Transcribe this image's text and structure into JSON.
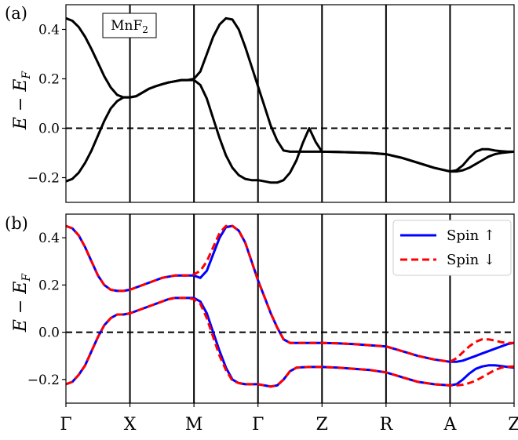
{
  "chart_data": [
    {
      "type": "line",
      "panel_label": "(a)",
      "annotation": "MnF",
      "annotation_sub": "2",
      "ylabel": "E − E",
      "ylabel_sub": "F",
      "ylim": [
        -0.3,
        0.5
      ],
      "yticks": [
        -0.2,
        0.0,
        0.2,
        0.4
      ],
      "ytick_labels": [
        "−0.2",
        "0.0",
        "0.2",
        "0.4"
      ],
      "x_ticks": [
        "Γ",
        "X",
        "M",
        "Γ",
        "Z",
        "R",
        "A",
        "Z"
      ],
      "x_tick_labels_visible": false,
      "fermi_level": 0.0,
      "colors": {
        "band": "#000000",
        "fermi": "#000000"
      },
      "series": [
        {
          "x": [
            0,
            0.1,
            0.2,
            0.3,
            0.4,
            0.5,
            0.6,
            0.7,
            0.8,
            0.9,
            1.0,
            1.1,
            1.2,
            1.3,
            1.4,
            1.5,
            1.6,
            1.7,
            1.8,
            1.9,
            2.0,
            2.1,
            2.2,
            2.3,
            2.4,
            2.5,
            2.6,
            2.7,
            2.8,
            2.9,
            3.0,
            3.1,
            3.2,
            3.3,
            3.4,
            3.5,
            3.6,
            3.7,
            3.8,
            3.9,
            4.0,
            4.25,
            4.5,
            4.75,
            5.0,
            5.25,
            5.5,
            5.75,
            6.0,
            6.1,
            6.2,
            6.3,
            6.4,
            6.5,
            6.6,
            6.7,
            6.8,
            6.9,
            7.0
          ],
          "values": [
            0.445,
            0.435,
            0.41,
            0.37,
            0.32,
            0.265,
            0.21,
            0.165,
            0.135,
            0.125,
            0.125,
            0.13,
            0.145,
            0.16,
            0.17,
            0.178,
            0.185,
            0.19,
            0.195,
            0.195,
            0.195,
            0.175,
            0.12,
            0.04,
            -0.04,
            -0.11,
            -0.16,
            -0.19,
            -0.205,
            -0.21,
            -0.21,
            -0.215,
            -0.22,
            -0.22,
            -0.21,
            -0.18,
            -0.13,
            -0.06,
            0.0,
            -0.055,
            -0.095,
            -0.096,
            -0.098,
            -0.1,
            -0.105,
            -0.12,
            -0.14,
            -0.16,
            -0.175,
            -0.17,
            -0.15,
            -0.12,
            -0.095,
            -0.085,
            -0.085,
            -0.09,
            -0.093,
            -0.095,
            -0.095
          ]
        },
        {
          "x": [
            0,
            0.1,
            0.2,
            0.3,
            0.4,
            0.5,
            0.6,
            0.7,
            0.8,
            0.9,
            1.0,
            1.1,
            1.2,
            1.3,
            1.4,
            1.5,
            1.6,
            1.7,
            1.8,
            1.9,
            2.0,
            2.1,
            2.2,
            2.3,
            2.4,
            2.5,
            2.6,
            2.7,
            2.8,
            2.9,
            3.0,
            3.1,
            3.2,
            3.3,
            3.4,
            3.5,
            3.6,
            3.7,
            3.8,
            3.9,
            4.0,
            4.25,
            4.5,
            4.75,
            5.0,
            5.25,
            5.5,
            5.75,
            6.0,
            6.1,
            6.2,
            6.3,
            6.4,
            6.5,
            6.6,
            6.7,
            6.8,
            6.9,
            7.0
          ],
          "values": [
            -0.215,
            -0.205,
            -0.18,
            -0.14,
            -0.09,
            -0.03,
            0.03,
            0.08,
            0.11,
            0.125,
            0.125,
            0.13,
            0.145,
            0.16,
            0.17,
            0.178,
            0.185,
            0.19,
            0.195,
            0.195,
            0.2,
            0.23,
            0.3,
            0.37,
            0.42,
            0.445,
            0.44,
            0.4,
            0.33,
            0.25,
            0.17,
            0.09,
            0.01,
            -0.05,
            -0.09,
            -0.095,
            -0.095,
            -0.095,
            -0.095,
            -0.095,
            -0.095,
            -0.096,
            -0.098,
            -0.1,
            -0.105,
            -0.12,
            -0.14,
            -0.16,
            -0.175,
            -0.175,
            -0.17,
            -0.16,
            -0.145,
            -0.13,
            -0.115,
            -0.105,
            -0.1,
            -0.097,
            -0.095
          ]
        }
      ]
    },
    {
      "type": "line",
      "panel_label": "(b)",
      "ylabel": "E − E",
      "ylabel_sub": "F",
      "ylim": [
        -0.3,
        0.5
      ],
      "yticks": [
        -0.2,
        0.0,
        0.2,
        0.4
      ],
      "ytick_labels": [
        "−0.2",
        "0.0",
        "0.2",
        "0.4"
      ],
      "x_ticks": [
        "Γ",
        "X",
        "M",
        "Γ",
        "Z",
        "R",
        "A",
        "Z"
      ],
      "fermi_level": 0.0,
      "legend": [
        {
          "label": "Spin ↑",
          "color": "#0000ff",
          "dash": "solid"
        },
        {
          "label": "Spin ↓",
          "color": "#ff0000",
          "dash": "dashed"
        }
      ],
      "legend_placement": "top-right",
      "colors": {
        "up": "#0000ff",
        "down": "#ff0000",
        "fermi": "#000000"
      },
      "series": [
        {
          "name": "Spin ↑",
          "band": 1,
          "x": [
            0,
            0.1,
            0.2,
            0.3,
            0.4,
            0.5,
            0.6,
            0.7,
            0.8,
            0.9,
            1.0,
            1.1,
            1.2,
            1.3,
            1.4,
            1.5,
            1.6,
            1.7,
            1.8,
            1.9,
            2.0,
            2.1,
            2.2,
            2.3,
            2.4,
            2.5,
            2.6,
            2.7,
            2.8,
            2.9,
            3.0,
            3.1,
            3.2,
            3.3,
            3.4,
            3.5,
            3.6,
            3.7,
            3.8,
            3.9,
            4.0,
            4.25,
            4.5,
            4.75,
            5.0,
            5.25,
            5.5,
            5.75,
            6.0,
            6.1,
            6.2,
            6.3,
            6.4,
            6.5,
            6.6,
            6.7,
            6.8,
            6.9,
            7.0
          ],
          "values": [
            0.45,
            0.44,
            0.41,
            0.36,
            0.3,
            0.24,
            0.2,
            0.18,
            0.175,
            0.175,
            0.18,
            0.19,
            0.2,
            0.21,
            0.22,
            0.23,
            0.235,
            0.24,
            0.24,
            0.24,
            0.24,
            0.23,
            0.26,
            0.33,
            0.4,
            0.445,
            0.45,
            0.43,
            0.38,
            0.3,
            0.22,
            0.15,
            0.08,
            0.02,
            -0.03,
            -0.045,
            -0.045,
            -0.045,
            -0.045,
            -0.045,
            -0.045,
            -0.047,
            -0.05,
            -0.055,
            -0.06,
            -0.08,
            -0.1,
            -0.115,
            -0.125,
            -0.125,
            -0.12,
            -0.11,
            -0.1,
            -0.09,
            -0.08,
            -0.07,
            -0.06,
            -0.05,
            -0.045
          ]
        },
        {
          "name": "Spin ↑",
          "band": 2,
          "x": [
            0,
            0.1,
            0.2,
            0.3,
            0.4,
            0.5,
            0.6,
            0.7,
            0.8,
            0.9,
            1.0,
            1.1,
            1.2,
            1.3,
            1.4,
            1.5,
            1.6,
            1.7,
            1.8,
            1.9,
            2.0,
            2.1,
            2.2,
            2.3,
            2.4,
            2.5,
            2.6,
            2.7,
            2.8,
            2.9,
            3.0,
            3.1,
            3.2,
            3.3,
            3.4,
            3.5,
            3.6,
            3.7,
            3.8,
            3.9,
            4.0,
            4.25,
            4.5,
            4.75,
            5.0,
            5.25,
            5.5,
            5.75,
            6.0,
            6.1,
            6.2,
            6.3,
            6.4,
            6.5,
            6.6,
            6.7,
            6.8,
            6.9,
            7.0
          ],
          "values": [
            -0.22,
            -0.21,
            -0.18,
            -0.14,
            -0.08,
            -0.02,
            0.03,
            0.06,
            0.075,
            0.075,
            0.08,
            0.09,
            0.1,
            0.11,
            0.12,
            0.13,
            0.14,
            0.145,
            0.145,
            0.145,
            0.145,
            0.13,
            0.08,
            0.0,
            -0.08,
            -0.15,
            -0.2,
            -0.215,
            -0.22,
            -0.22,
            -0.22,
            -0.225,
            -0.23,
            -0.225,
            -0.2,
            -0.165,
            -0.15,
            -0.148,
            -0.147,
            -0.147,
            -0.147,
            -0.15,
            -0.155,
            -0.16,
            -0.17,
            -0.19,
            -0.21,
            -0.22,
            -0.225,
            -0.22,
            -0.2,
            -0.175,
            -0.155,
            -0.145,
            -0.14,
            -0.14,
            -0.143,
            -0.147,
            -0.15
          ]
        },
        {
          "name": "Spin ↓",
          "band": 1,
          "x": [
            0,
            0.1,
            0.2,
            0.3,
            0.4,
            0.5,
            0.6,
            0.7,
            0.8,
            0.9,
            1.0,
            1.1,
            1.2,
            1.3,
            1.4,
            1.5,
            1.6,
            1.7,
            1.8,
            1.9,
            2.0,
            2.1,
            2.2,
            2.3,
            2.4,
            2.5,
            2.6,
            2.7,
            2.8,
            2.9,
            3.0,
            3.1,
            3.2,
            3.3,
            3.4,
            3.5,
            3.6,
            3.7,
            3.8,
            3.9,
            4.0,
            4.25,
            4.5,
            4.75,
            5.0,
            5.25,
            5.5,
            5.75,
            6.0,
            6.1,
            6.2,
            6.3,
            6.4,
            6.5,
            6.6,
            6.7,
            6.8,
            6.9,
            7.0
          ],
          "values": [
            0.45,
            0.44,
            0.41,
            0.36,
            0.3,
            0.24,
            0.2,
            0.18,
            0.175,
            0.175,
            0.18,
            0.19,
            0.2,
            0.21,
            0.22,
            0.23,
            0.235,
            0.24,
            0.24,
            0.24,
            0.245,
            0.26,
            0.3,
            0.36,
            0.42,
            0.45,
            0.45,
            0.43,
            0.38,
            0.3,
            0.22,
            0.15,
            0.08,
            0.02,
            -0.03,
            -0.045,
            -0.045,
            -0.045,
            -0.045,
            -0.045,
            -0.045,
            -0.047,
            -0.05,
            -0.055,
            -0.06,
            -0.08,
            -0.1,
            -0.115,
            -0.125,
            -0.11,
            -0.085,
            -0.06,
            -0.04,
            -0.03,
            -0.03,
            -0.035,
            -0.042,
            -0.045,
            -0.045
          ]
        },
        {
          "name": "Spin ↓",
          "band": 2,
          "x": [
            0,
            0.1,
            0.2,
            0.3,
            0.4,
            0.5,
            0.6,
            0.7,
            0.8,
            0.9,
            1.0,
            1.1,
            1.2,
            1.3,
            1.4,
            1.5,
            1.6,
            1.7,
            1.8,
            1.9,
            2.0,
            2.1,
            2.2,
            2.3,
            2.4,
            2.5,
            2.6,
            2.7,
            2.8,
            2.9,
            3.0,
            3.1,
            3.2,
            3.3,
            3.4,
            3.5,
            3.6,
            3.7,
            3.8,
            3.9,
            4.0,
            4.25,
            4.5,
            4.75,
            5.0,
            5.25,
            5.5,
            5.75,
            6.0,
            6.1,
            6.2,
            6.3,
            6.4,
            6.5,
            6.6,
            6.7,
            6.8,
            6.9,
            7.0
          ],
          "values": [
            -0.22,
            -0.21,
            -0.18,
            -0.14,
            -0.08,
            -0.02,
            0.03,
            0.06,
            0.075,
            0.075,
            0.08,
            0.09,
            0.1,
            0.11,
            0.12,
            0.13,
            0.14,
            0.145,
            0.145,
            0.145,
            0.14,
            0.12,
            0.06,
            -0.02,
            -0.1,
            -0.16,
            -0.205,
            -0.215,
            -0.22,
            -0.22,
            -0.22,
            -0.225,
            -0.23,
            -0.225,
            -0.2,
            -0.165,
            -0.15,
            -0.148,
            -0.147,
            -0.147,
            -0.147,
            -0.15,
            -0.155,
            -0.16,
            -0.17,
            -0.19,
            -0.21,
            -0.22,
            -0.225,
            -0.225,
            -0.222,
            -0.215,
            -0.205,
            -0.19,
            -0.175,
            -0.16,
            -0.15,
            -0.146,
            -0.145
          ]
        }
      ]
    }
  ]
}
